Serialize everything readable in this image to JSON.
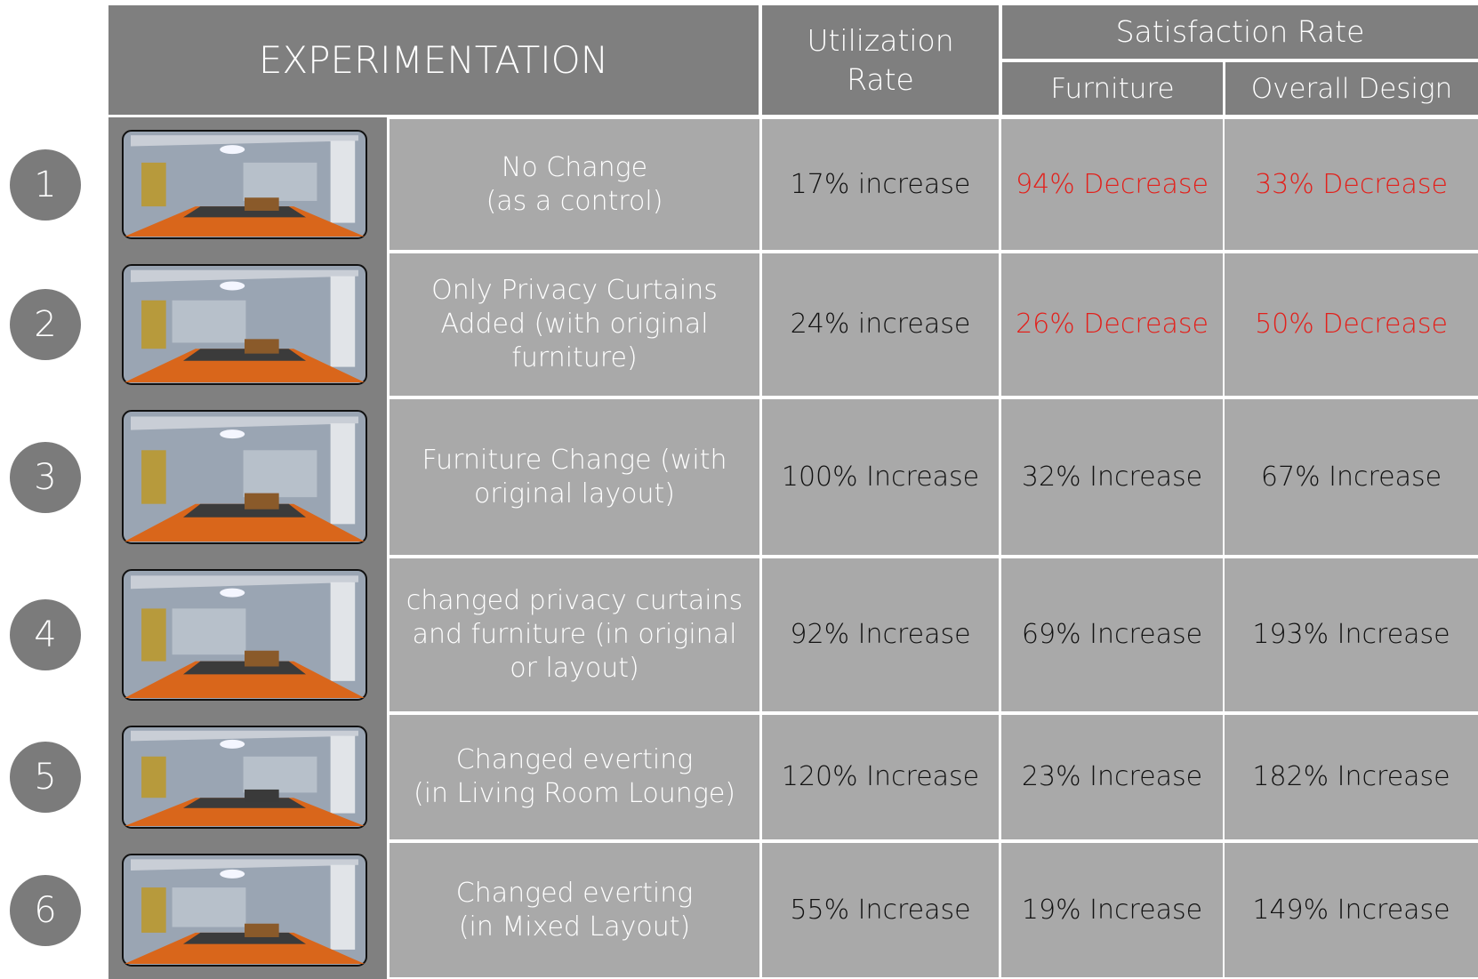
{
  "header": {
    "experimentation": "EXPERIMENTATION",
    "utilization": [
      "Utilization",
      "Rate"
    ],
    "satisfaction": "Satisfaction Rate",
    "furniture": "Furniture",
    "overall": "Overall Design"
  },
  "rows": [
    {
      "number": "1",
      "description": [
        "No Change",
        "(as a control)"
      ],
      "utilization": "17% increase",
      "furniture": {
        "text": "94% Decrease",
        "color": "#e3201b"
      },
      "overall": {
        "text": "33% Decrease",
        "color": "#e3201b"
      }
    },
    {
      "number": "2",
      "description": [
        "Only Privacy Curtains",
        "Added (with original",
        "furniture)"
      ],
      "utilization": "24% increase",
      "furniture": {
        "text": "26% Decrease",
        "color": "#e3201b"
      },
      "overall": {
        "text": "50% Decrease",
        "color": "#e3201b"
      }
    },
    {
      "number": "3",
      "description": [
        "Furniture Change (with",
        "original layout)"
      ],
      "utilization": "100% Increase",
      "furniture": {
        "text": "32% Increase",
        "color": "#111111"
      },
      "overall": {
        "text": "67% Increase",
        "color": "#111111"
      }
    },
    {
      "number": "4",
      "description": [
        "changed privacy curtains",
        "and furniture (in original",
        "or layout)"
      ],
      "utilization": "92% Increase",
      "furniture": {
        "text": "69% Increase",
        "color": "#111111"
      },
      "overall": {
        "text": "193% Increase",
        "color": "#111111"
      }
    },
    {
      "number": "5",
      "description": [
        "Changed everting",
        "(in Living Room Lounge)"
      ],
      "utilization": "120% Increase",
      "furniture": {
        "text": "23% Increase",
        "color": "#111111"
      },
      "overall": {
        "text": "182% Increase",
        "color": "#111111"
      }
    },
    {
      "number": "6",
      "description": [
        "Changed everting",
        "(in Mixed Layout)"
      ],
      "utilization": "55% Increase",
      "furniture": {
        "text": "19% Increase",
        "color": "#111111"
      },
      "overall": {
        "text": "149% Increase",
        "color": "#111111"
      }
    }
  ]
}
